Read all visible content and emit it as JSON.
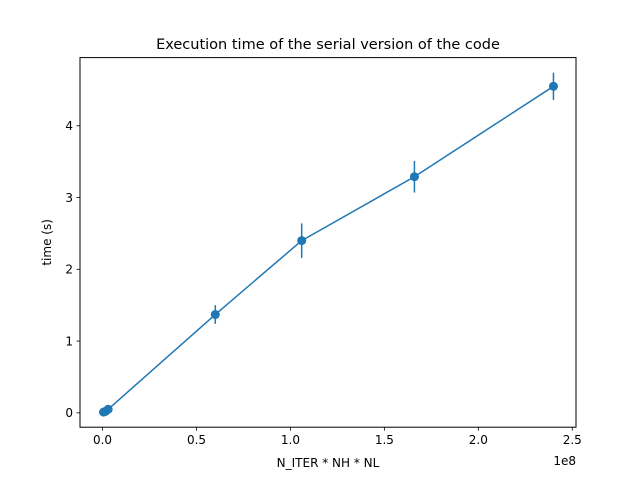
{
  "chart_data": {
    "type": "line",
    "title": "Execution time of the serial version of the code",
    "xlabel": "N_ITER * NH * NL",
    "ylabel": "time (s)",
    "x_offset_label": "1e8",
    "x_scale_factor": 100000000,
    "xlim": [
      -0.12,
      2.52
    ],
    "ylim": [
      -0.2,
      4.95
    ],
    "x_ticks": [
      0,
      0.5,
      1.0,
      1.5,
      2.0,
      2.5
    ],
    "x_tick_labels": [
      "0.0",
      "0.5",
      "1.0",
      "1.5",
      "2.0",
      "2.5"
    ],
    "y_ticks": [
      0,
      1,
      2,
      3,
      4
    ],
    "y_tick_labels": [
      "0",
      "1",
      "2",
      "3",
      "4"
    ],
    "grid": false,
    "legend": "none",
    "series": [
      {
        "color": "#1f77b4",
        "x": [
          0.005,
          0.015,
          0.03,
          0.6,
          1.06,
          1.66,
          2.4
        ],
        "y": [
          0.01,
          0.02,
          0.05,
          1.37,
          2.4,
          3.29,
          4.55
        ],
        "yerr": [
          0.02,
          0.02,
          0.03,
          0.13,
          0.24,
          0.22,
          0.19
        ]
      }
    ]
  }
}
